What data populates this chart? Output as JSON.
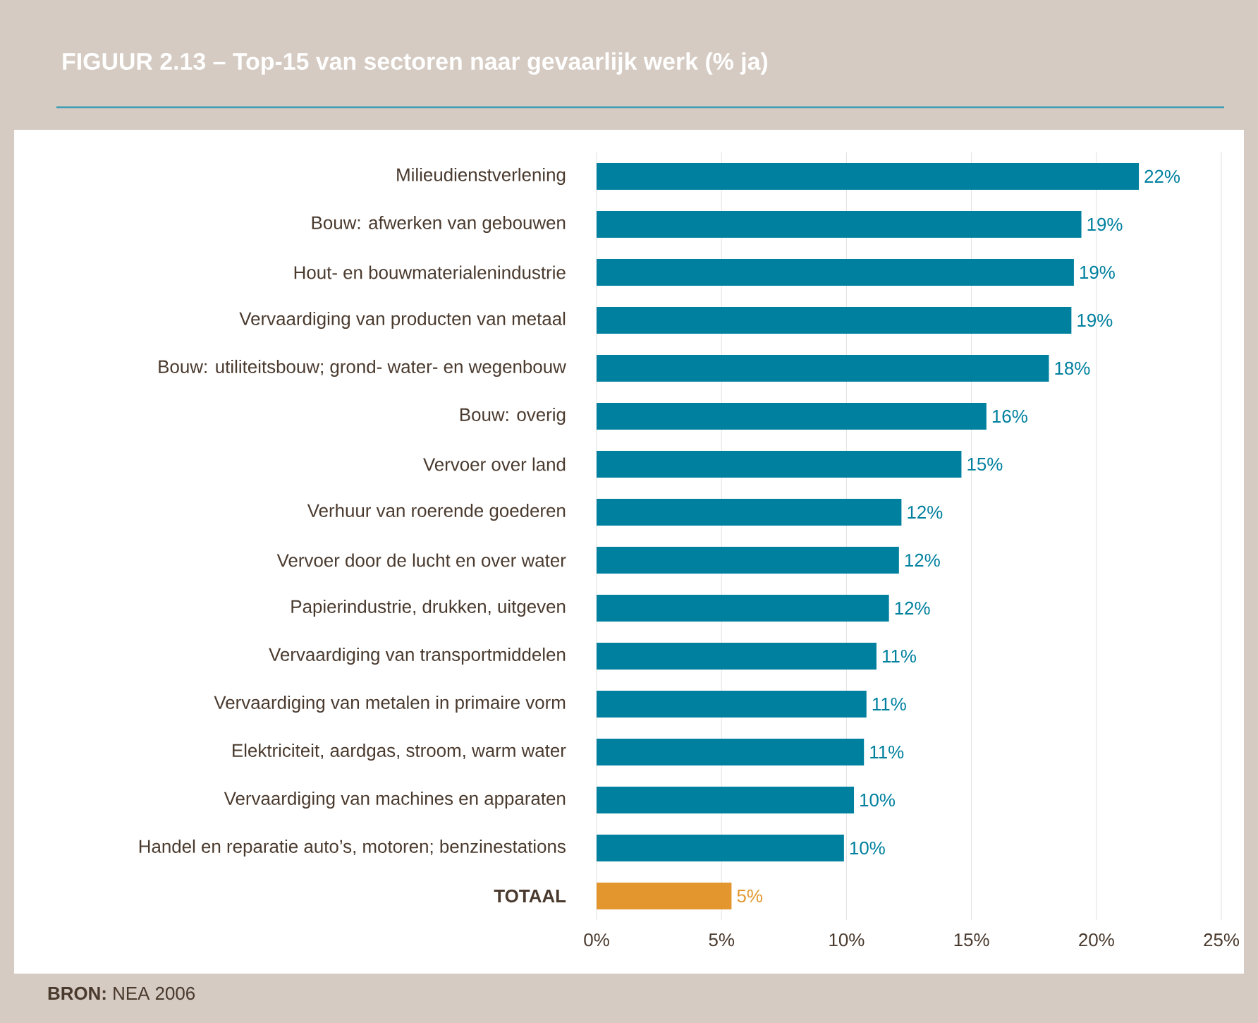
{
  "chart_data": {
    "type": "bar",
    "orientation": "horizontal",
    "title": "FIGUUR 2.13  –  Top-15 van sectoren naar gevaarlijk werk (% ja)",
    "categories": [
      "Milieudienstverlening",
      "Bouw: afwerken van gebouwen",
      "Hout- en bouwmaterialenindustrie",
      "Vervaardiging van producten van metaal",
      "Bouw: utiliteitsbouw; grond- water- en wegenbouw",
      "Bouw: overig",
      "Vervoer over land",
      "Verhuur van roerende goederen",
      "Vervoer door de lucht en over water",
      "Papierindustrie, drukken, uitgeven",
      "Vervaardiging van transportmiddelen",
      "Vervaardiging van metalen in primaire vorm",
      "Elektriciteit, aardgas, stroom, warm water",
      "Vervaardiging van machines en apparaten",
      "Handel en reparatie auto’s, motoren; benzinestations",
      "TOTAAL"
    ],
    "values": [
      21.7,
      19.4,
      19.1,
      19.0,
      18.1,
      15.6,
      14.6,
      12.2,
      12.1,
      11.7,
      11.2,
      10.8,
      10.7,
      10.3,
      9.9,
      5.4
    ],
    "value_labels": [
      "22%",
      "19%",
      "19%",
      "19%",
      "18%",
      "16%",
      "15%",
      "12%",
      "12%",
      "12%",
      "11%",
      "11%",
      "11%",
      "10%",
      "10%",
      "5%"
    ],
    "color": "#00809f",
    "colors": [
      "#00809f",
      "#00809f",
      "#00809f",
      "#00809f",
      "#00809f",
      "#00809f",
      "#00809f",
      "#00809f",
      "#00809f",
      "#00809f",
      "#00809f",
      "#00809f",
      "#00809f",
      "#00809f",
      "#00809f",
      "#e3962e"
    ],
    "xlim": [
      0,
      25
    ],
    "xticks": [
      {
        "value": 0,
        "label": "0%"
      },
      {
        "value": 5,
        "label": "5%"
      },
      {
        "value": 10,
        "label": "10%"
      },
      {
        "value": 15,
        "label": "15%"
      },
      {
        "value": 20,
        "label": "20%"
      },
      {
        "value": 25,
        "label": "25%"
      }
    ],
    "grid": "x",
    "annotations": [
      "**BRON:** NEA 2006"
    ]
  }
}
